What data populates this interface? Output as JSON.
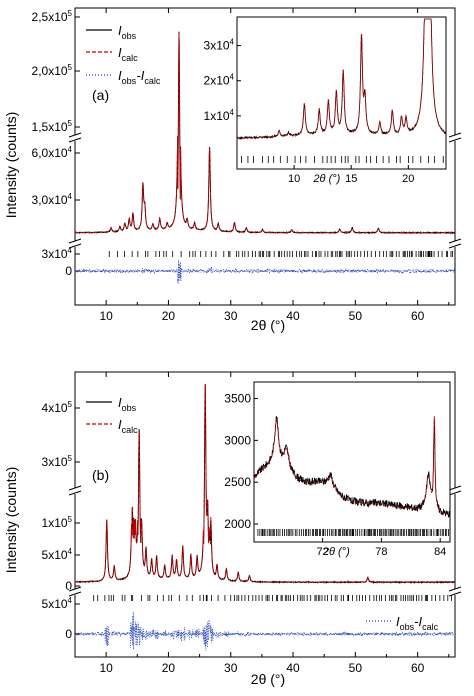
{
  "chart_data": [
    {
      "type": "line",
      "panel_label": "(a)",
      "xlabel": "2θ (°)",
      "ylabel": "Intensity (counts)",
      "xlim": [
        5,
        66
      ],
      "xticks": [
        "10",
        "20",
        "30",
        "40",
        "50",
        "60"
      ],
      "upper_yticks": [
        "1,5x10⁵",
        "2,0x10⁵",
        "2,5x10⁵"
      ],
      "lower_yticks": [
        "3,0x10⁴",
        "6,0x10⁴"
      ],
      "diff_yticks": [
        "0",
        "3x10⁴"
      ],
      "legend_position": "top-left",
      "series": [
        {
          "name": "I_obs",
          "style": "solid",
          "color": "#000000"
        },
        {
          "name": "I_calc",
          "style": "dashed",
          "color": "#cc0000"
        },
        {
          "name": "I_obs-I_calc",
          "style": "dotted",
          "color": "#1f3fbf"
        }
      ],
      "peaks": {
        "x": [
          10.8,
          12.2,
          13.0,
          13.7,
          14.3,
          15.9,
          16.2,
          17.5,
          18.6,
          19.8,
          21.7,
          23.0,
          24.2,
          26.6,
          28.0,
          30.6,
          32.5,
          35.1,
          39.8,
          47.5,
          49.5,
          53.7
        ],
        "y": [
          3000,
          3500,
          5500,
          8000,
          11500,
          30000,
          14000,
          4000,
          7500,
          4000,
          232000,
          5500,
          4500,
          56000,
          5000,
          6500,
          3000,
          2000,
          2000,
          2500,
          3500,
          3000
        ]
      },
      "inset": {
        "xlabel": "2θ (°)",
        "xlim": [
          5,
          23.3
        ],
        "ylim": [
          0,
          37000
        ],
        "xticks": [
          "10",
          "15",
          "20"
        ],
        "yticks": [
          "1x10⁴",
          "2x10⁴",
          "3x10⁴"
        ]
      }
    },
    {
      "type": "line",
      "panel_label": "(b)",
      "xlabel": "2θ (°)",
      "ylabel": "Intensity (counts)",
      "xlim": [
        5,
        66
      ],
      "xticks": [
        "10",
        "20",
        "30",
        "40",
        "50",
        "60"
      ],
      "upper_yticks": [
        "3x10⁵",
        "4x10⁵"
      ],
      "lower_yticks": [
        "0",
        "5x10⁴",
        "1x10⁵"
      ],
      "diff_yticks": [
        "0",
        "5x10⁴"
      ],
      "legend_position": "top-left",
      "series": [
        {
          "name": "I_obs",
          "style": "solid",
          "color": "#000000"
        },
        {
          "name": "I_calc",
          "style": "dashed",
          "color": "#cc0000"
        },
        {
          "name": "I_obs-I_calc",
          "style": "dotted",
          "color": "#1f3fbf"
        }
      ],
      "peaks": {
        "x": [
          10.1,
          11.3,
          14.2,
          14.6,
          15.3,
          15.7,
          16.4,
          17.3,
          18.1,
          19.4,
          20.6,
          21.3,
          22.3,
          23.6,
          24.6,
          25.9,
          26.3,
          26.8,
          27.8,
          29.3,
          31.2,
          33.0,
          52.0
        ],
        "y": [
          98000,
          23000,
          165000,
          125000,
          340000,
          58000,
          44000,
          30000,
          36000,
          22000,
          37000,
          30000,
          52000,
          38000,
          33000,
          438000,
          150000,
          83000,
          22000,
          19000,
          14000,
          10000,
          8000
        ]
      },
      "inset": {
        "xlabel": "2θ (°)",
        "xlim": [
          65,
          85
        ],
        "ylim": [
          2000,
          3650
        ],
        "xticks": [
          "72",
          "78",
          "84"
        ],
        "yticks": [
          "2000",
          "2500",
          "3000",
          "3500"
        ]
      }
    }
  ]
}
